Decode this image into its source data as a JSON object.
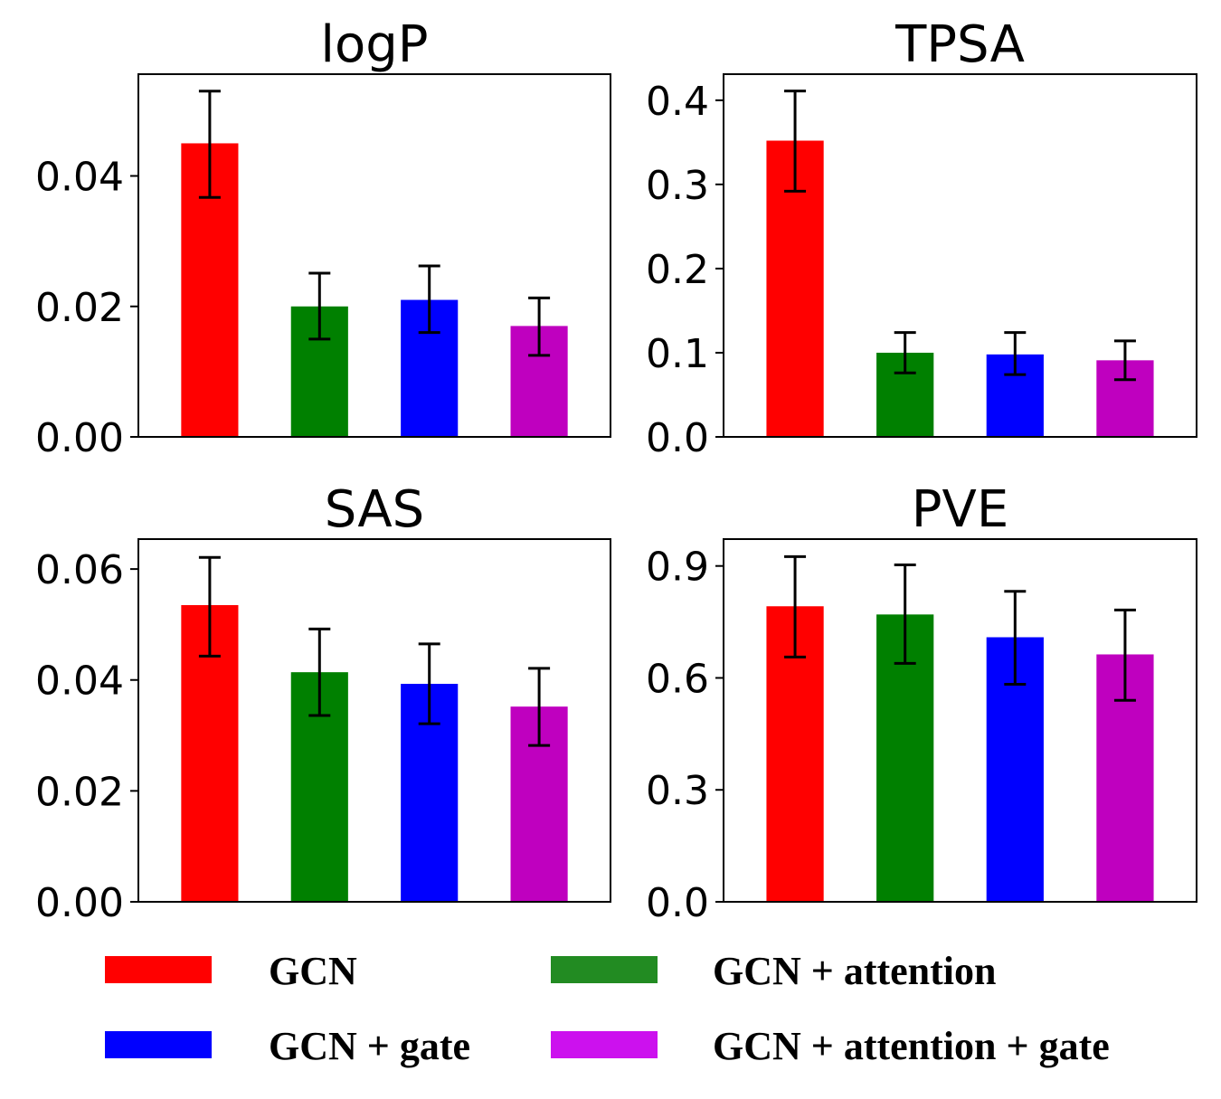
{
  "chart_data": [
    {
      "type": "bar",
      "title": "logP",
      "categories": [
        "GCN",
        "GCN + attention",
        "GCN + gate",
        "GCN + attention + gate"
      ],
      "values": [
        0.045,
        0.02,
        0.021,
        0.017
      ],
      "error_low": [
        0.0367,
        0.015,
        0.016,
        0.0125
      ],
      "error_high": [
        0.053,
        0.0251,
        0.0262,
        0.0213
      ],
      "yticks": [
        0.0,
        0.02,
        0.04
      ],
      "ytick_labels": [
        "0.00",
        "0.02",
        "0.04"
      ],
      "ylim": [
        0,
        0.0556
      ],
      "xlabel": "",
      "ylabel": "",
      "grid": false
    },
    {
      "type": "bar",
      "title": "TPSA",
      "categories": [
        "GCN",
        "GCN + attention",
        "GCN + gate",
        "GCN + attention + gate"
      ],
      "values": [
        0.352,
        0.1,
        0.098,
        0.091
      ],
      "error_low": [
        0.292,
        0.076,
        0.074,
        0.068
      ],
      "error_high": [
        0.411,
        0.124,
        0.124,
        0.114
      ],
      "yticks": [
        0.0,
        0.1,
        0.2,
        0.3,
        0.4
      ],
      "ytick_labels": [
        "0.0",
        "0.1",
        "0.2",
        "0.3",
        "0.4"
      ],
      "ylim": [
        0,
        0.431
      ],
      "xlabel": "",
      "ylabel": "",
      "grid": false
    },
    {
      "type": "bar",
      "title": "SAS",
      "categories": [
        "GCN",
        "GCN + attention",
        "GCN + gate",
        "GCN + attention + gate"
      ],
      "values": [
        0.0535,
        0.0414,
        0.0393,
        0.0352
      ],
      "error_low": [
        0.0443,
        0.0336,
        0.0321,
        0.0282
      ],
      "error_high": [
        0.0621,
        0.0492,
        0.0465,
        0.0421
      ],
      "yticks": [
        0.0,
        0.02,
        0.04,
        0.06
      ],
      "ytick_labels": [
        "0.00",
        "0.02",
        "0.04",
        "0.06"
      ],
      "ylim": [
        0,
        0.0654
      ],
      "xlabel": "",
      "ylabel": "",
      "grid": false
    },
    {
      "type": "bar",
      "title": "PVE",
      "categories": [
        "GCN",
        "GCN + attention",
        "GCN + gate",
        "GCN + attention + gate"
      ],
      "values": [
        0.792,
        0.77,
        0.709,
        0.663
      ],
      "error_low": [
        0.656,
        0.639,
        0.583,
        0.54
      ],
      "error_high": [
        0.925,
        0.903,
        0.832,
        0.782
      ],
      "yticks": [
        0.0,
        0.3,
        0.6,
        0.9
      ],
      "ytick_labels": [
        "0.0",
        "0.3",
        "0.6",
        "0.9"
      ],
      "ylim": [
        0,
        0.972
      ],
      "xlabel": "",
      "ylabel": "",
      "grid": false
    }
  ],
  "bar_colors": [
    "#ff0000",
    "#008000",
    "#0000ff",
    "#bf00bf"
  ],
  "legend": {
    "placement": "bottom",
    "items": [
      {
        "label": "GCN",
        "color": "#ff0000"
      },
      {
        "label": "GCN + attention",
        "color": "#228b22"
      },
      {
        "label": "GCN + gate",
        "color": "#0000ff"
      },
      {
        "label": "GCN + attention + gate",
        "color": "#cc11ee"
      }
    ]
  }
}
